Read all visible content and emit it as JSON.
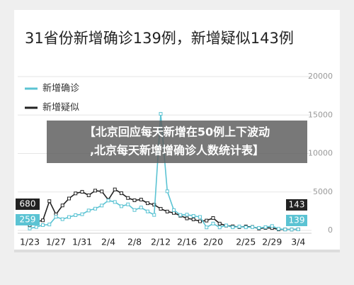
{
  "chart_data": {
    "type": "line",
    "title": "31省份新增确诊139例，新增疑似143例",
    "caption": [
      "【北京回应每天新增在50例上下波动",
      ",北京每天新增增确诊人数统计表】"
    ],
    "categories": [
      "1/23",
      null,
      null,
      null,
      "1/27",
      null,
      null,
      null,
      "1/31",
      null,
      null,
      null,
      "2/4",
      null,
      null,
      null,
      "2/8",
      null,
      null,
      null,
      "2/12",
      null,
      null,
      null,
      "2/16",
      null,
      null,
      null,
      "2/20",
      null,
      null,
      null,
      null,
      "2/25",
      null,
      null,
      null,
      "2/29",
      null,
      null,
      null,
      "3/4"
    ],
    "series": [
      {
        "name": "新增确诊",
        "color": "#5bc3d3",
        "values": [
          259,
          444,
          688,
          769,
          1771,
          1459,
          1737,
          1982,
          2102,
          2590,
          2829,
          3235,
          3887,
          3694,
          3143,
          3385,
          2652,
          2973,
          2467,
          2015,
          15152,
          5090,
          2641,
          2009,
          2048,
          1886,
          1749,
          394,
          889,
          397,
          648,
          409,
          508,
          406,
          433,
          327,
          427,
          573,
          202,
          125,
          119,
          139
        ]
      },
      {
        "name": "新增疑似",
        "color": "#222222",
        "values": [
          680,
          1118,
          1309,
          3806,
          2077,
          3248,
          4148,
          4812,
          5019,
          4562,
          5173,
          5072,
          3971,
          5328,
          4833,
          4214,
          3916,
          4008,
          3536,
          3342,
          2807,
          2450,
          2277,
          1918,
          1563,
          1432,
          1185,
          1277,
          1614,
          882,
          620,
          530,
          439,
          508,
          452,
          248,
          335,
          312,
          132,
          129,
          119,
          143
        ]
      }
    ],
    "ylim": [
      0,
      20000
    ],
    "yticks": [
      0,
      5000,
      10000,
      15000,
      20000
    ],
    "grid": true
  }
}
